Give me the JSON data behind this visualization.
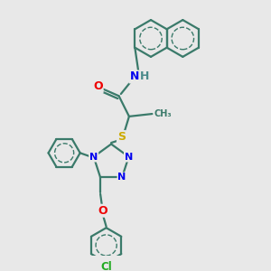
{
  "background_color": "#e8e8e8",
  "bond_color": "#3a7a6a",
  "atom_colors": {
    "N": "#0000ee",
    "O": "#ee0000",
    "S": "#ccaa00",
    "Cl": "#22aa22",
    "H": "#4a8a8a",
    "C": "#3a7a6a"
  },
  "figsize": [
    3.0,
    3.0
  ],
  "dpi": 100
}
